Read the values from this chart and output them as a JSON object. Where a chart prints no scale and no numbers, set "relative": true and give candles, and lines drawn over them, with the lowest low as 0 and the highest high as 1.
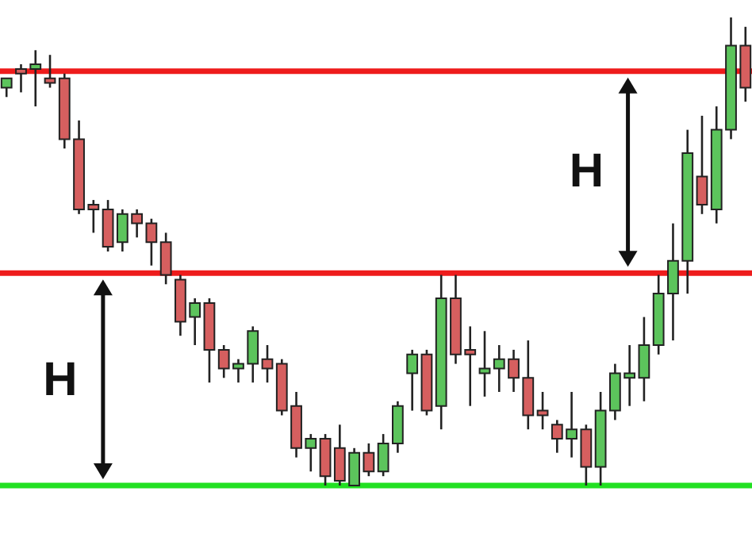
{
  "chart_data": {
    "type": "candlestick",
    "relative": true,
    "categories": [
      null,
      null,
      null,
      null,
      null,
      null,
      null,
      null,
      null,
      null,
      null,
      null,
      null,
      null,
      null,
      null,
      null,
      null,
      null,
      null,
      null,
      null,
      null,
      null,
      null,
      null,
      null,
      null,
      null,
      null,
      null,
      null,
      null,
      null,
      null,
      null,
      null,
      null,
      null,
      null,
      null,
      null,
      null,
      null,
      null,
      null,
      null,
      null,
      null,
      null,
      null,
      null
    ],
    "ohlc": [
      [
        0.85,
        0.87,
        0.83,
        0.87
      ],
      [
        0.89,
        0.9,
        0.84,
        0.88
      ],
      [
        0.89,
        0.93,
        0.81,
        0.9
      ],
      [
        0.87,
        0.92,
        0.85,
        0.86
      ],
      [
        0.87,
        0.88,
        0.72,
        0.74
      ],
      [
        0.74,
        0.78,
        0.58,
        0.59
      ],
      [
        0.6,
        0.61,
        0.54,
        0.59
      ],
      [
        0.59,
        0.61,
        0.5,
        0.51
      ],
      [
        0.52,
        0.59,
        0.5,
        0.58
      ],
      [
        0.58,
        0.59,
        0.53,
        0.56
      ],
      [
        0.56,
        0.57,
        0.47,
        0.52
      ],
      [
        0.52,
        0.54,
        0.43,
        0.45
      ],
      [
        0.44,
        0.45,
        0.32,
        0.35
      ],
      [
        0.36,
        0.4,
        0.3,
        0.39
      ],
      [
        0.39,
        0.4,
        0.22,
        0.29
      ],
      [
        0.29,
        0.3,
        0.23,
        0.25
      ],
      [
        0.25,
        0.27,
        0.22,
        0.26
      ],
      [
        0.26,
        0.34,
        0.22,
        0.33
      ],
      [
        0.27,
        0.3,
        0.22,
        0.25
      ],
      [
        0.26,
        0.27,
        0.15,
        0.16
      ],
      [
        0.17,
        0.2,
        0.06,
        0.08
      ],
      [
        0.08,
        0.11,
        0.03,
        0.1
      ],
      [
        0.1,
        0.11,
        0.0,
        0.02
      ],
      [
        0.08,
        0.13,
        0.0,
        0.01
      ],
      [
        0.0,
        0.08,
        0.0,
        0.07
      ],
      [
        0.07,
        0.09,
        0.02,
        0.03
      ],
      [
        0.03,
        0.11,
        0.02,
        0.09
      ],
      [
        0.09,
        0.18,
        0.07,
        0.17
      ],
      [
        0.24,
        0.29,
        0.16,
        0.28
      ],
      [
        0.28,
        0.29,
        0.15,
        0.16
      ],
      [
        0.17,
        0.45,
        0.12,
        0.4
      ],
      [
        0.4,
        0.45,
        0.26,
        0.28
      ],
      [
        0.29,
        0.34,
        0.17,
        0.28
      ],
      [
        0.24,
        0.33,
        0.19,
        0.25
      ],
      [
        0.25,
        0.3,
        0.2,
        0.27
      ],
      [
        0.27,
        0.29,
        0.2,
        0.23
      ],
      [
        0.23,
        0.31,
        0.12,
        0.15
      ],
      [
        0.16,
        0.2,
        0.12,
        0.15
      ],
      [
        0.13,
        0.14,
        0.07,
        0.1
      ],
      [
        0.1,
        0.2,
        0.06,
        0.12
      ],
      [
        0.12,
        0.13,
        0.0,
        0.04
      ],
      [
        0.04,
        0.2,
        0.0,
        0.16
      ],
      [
        0.16,
        0.26,
        0.14,
        0.24
      ],
      [
        0.23,
        0.3,
        0.17,
        0.24
      ],
      [
        0.23,
        0.36,
        0.18,
        0.3
      ],
      [
        0.3,
        0.45,
        0.28,
        0.41
      ],
      [
        0.41,
        0.56,
        0.31,
        0.48
      ],
      [
        0.48,
        0.76,
        0.41,
        0.71
      ],
      [
        0.66,
        0.79,
        0.58,
        0.6
      ],
      [
        0.59,
        0.81,
        0.56,
        0.76
      ],
      [
        0.76,
        1.0,
        0.74,
        0.94
      ],
      [
        0.94,
        0.98,
        0.82,
        0.85
      ]
    ],
    "colors": [
      "#5cc45c",
      "#d65f5f",
      "#5cc45c",
      "#d65f5f",
      "#d65f5f",
      "#d65f5f",
      "#d65f5f",
      "#d65f5f",
      "#5cc45c",
      "#d65f5f",
      "#d65f5f",
      "#d65f5f",
      "#d65f5f",
      "#5cc45c",
      "#d65f5f",
      "#d65f5f",
      "#5cc45c",
      "#5cc45c",
      "#d65f5f",
      "#d65f5f",
      "#d65f5f",
      "#5cc45c",
      "#d65f5f",
      "#d65f5f",
      "#5cc45c",
      "#d65f5f",
      "#5cc45c",
      "#5cc45c",
      "#5cc45c",
      "#d65f5f",
      "#5cc45c",
      "#d65f5f",
      "#d65f5f",
      "#5cc45c",
      "#5cc45c",
      "#d65f5f",
      "#d65f5f",
      "#d65f5f",
      "#d65f5f",
      "#5cc45c",
      "#d65f5f",
      "#5cc45c",
      "#5cc45c",
      "#5cc45c",
      "#5cc45c",
      "#5cc45c",
      "#5cc45c",
      "#5cc45c",
      "#d65f5f",
      "#5cc45c",
      "#5cc45c",
      "#d65f5f"
    ],
    "ref_lines": [
      {
        "axis": "y",
        "value": 0.885,
        "color": "#ee1c1c"
      },
      {
        "axis": "y",
        "value": 0.454,
        "color": "#ee1c1c"
      },
      {
        "axis": "y",
        "value": 0,
        "color": "#22e022"
      }
    ],
    "annotations": [
      "H",
      "H"
    ]
  }
}
